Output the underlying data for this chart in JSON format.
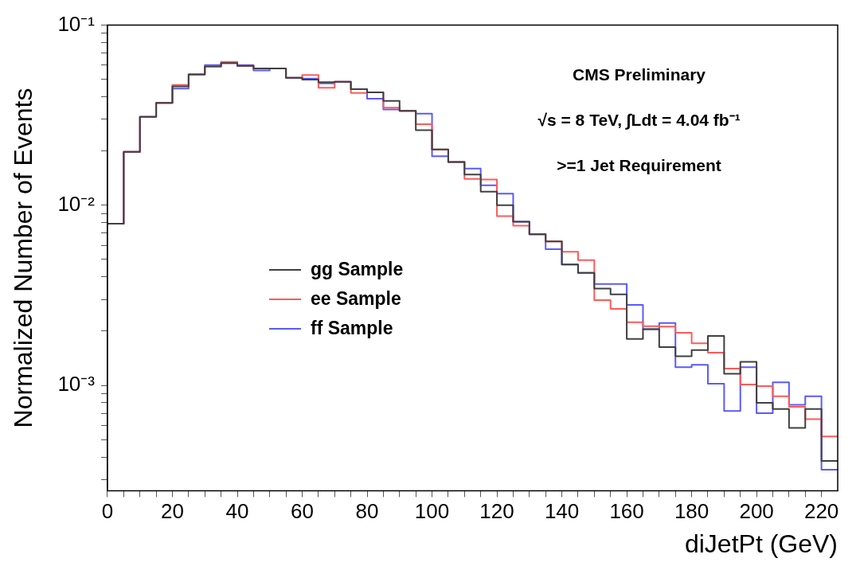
{
  "chart_data": {
    "type": "histogram",
    "xlabel": "diJetPt (GeV)",
    "ylabel": "Normalized Number of Events",
    "bins": [
      0,
      5,
      10,
      15,
      20,
      25,
      30,
      35,
      40,
      45,
      50,
      55,
      60,
      65,
      70,
      75,
      80,
      85,
      90,
      95,
      100,
      105,
      110,
      115,
      120,
      125,
      130,
      135,
      140,
      145,
      150,
      155,
      160,
      165,
      170,
      175,
      180,
      185,
      190,
      195,
      200,
      205,
      210,
      215,
      220,
      225
    ],
    "series": [
      {
        "name": "gg Sample",
        "color": "#404040",
        "values": [
          0.0079,
          0.0198,
          0.031,
          0.037,
          0.0457,
          0.0533,
          0.0589,
          0.0615,
          0.0594,
          0.0575,
          0.0575,
          0.051,
          0.0499,
          0.0482,
          0.0485,
          0.0441,
          0.0424,
          0.038,
          0.0334,
          0.0261,
          0.0204,
          0.0174,
          0.0148,
          0.0119,
          0.01,
          0.0081,
          0.0069,
          0.0063,
          0.00469,
          0.00421,
          0.00345,
          0.0032,
          0.00181,
          0.00205,
          0.00163,
          0.00145,
          0.00157,
          0.00188,
          0.00116,
          0.00135,
          0.0008,
          0.00074,
          0.00058,
          0.00074,
          0.00038
        ]
      },
      {
        "name": "ee Sample",
        "color": "#ff5a5a",
        "values": [
          0.0079,
          0.0198,
          0.031,
          0.037,
          0.0465,
          0.0533,
          0.0589,
          0.0625,
          0.0594,
          0.0575,
          0.0575,
          0.051,
          0.0528,
          0.0449,
          0.0485,
          0.042,
          0.0424,
          0.0348,
          0.0334,
          0.0282,
          0.0204,
          0.0174,
          0.014,
          0.0139,
          0.0087,
          0.0077,
          0.0069,
          0.0063,
          0.00552,
          0.00496,
          0.00297,
          0.00266,
          0.00224,
          0.00213,
          0.00212,
          0.00196,
          0.00171,
          0.00152,
          0.00124,
          0.00101,
          0.00099,
          0.00087,
          0.00076,
          0.00065,
          0.00052
        ]
      },
      {
        "name": "ff Sample",
        "color": "#5a5aff",
        "values": [
          0.0079,
          0.0198,
          0.031,
          0.037,
          0.0445,
          0.0533,
          0.06,
          0.0615,
          0.06,
          0.056,
          0.0575,
          0.051,
          0.0505,
          0.0475,
          0.0485,
          0.0441,
          0.039,
          0.034,
          0.0334,
          0.0323,
          0.0187,
          0.0174,
          0.016,
          0.0129,
          0.0116,
          0.0081,
          0.0069,
          0.0057,
          0.00469,
          0.00421,
          0.00365,
          0.00365,
          0.0028,
          0.00205,
          0.00222,
          0.00126,
          0.0013,
          0.00102,
          0.00072,
          0.00126,
          0.0007,
          0.00104,
          0.00078,
          0.00087,
          0.00034
        ]
      }
    ],
    "xlim": [
      0,
      225
    ],
    "xticks": [
      0,
      {
        "value": 5,
        "label": null
      },
      {
        "value": 10,
        "label": null
      },
      {
        "value": 15,
        "label": null
      },
      20,
      {
        "value": 25,
        "label": null
      },
      {
        "value": 30,
        "label": null
      },
      {
        "value": 35,
        "label": null
      },
      40,
      {
        "value": 45,
        "label": null
      },
      {
        "value": 50,
        "label": null
      },
      {
        "value": 55,
        "label": null
      },
      60,
      {
        "value": 65,
        "label": null
      },
      {
        "value": 70,
        "label": null
      },
      {
        "value": 75,
        "label": null
      },
      80,
      {
        "value": 85,
        "label": null
      },
      {
        "value": 90,
        "label": null
      },
      {
        "value": 95,
        "label": null
      },
      100,
      {
        "value": 105,
        "label": null
      },
      {
        "value": 110,
        "label": null
      },
      {
        "value": 115,
        "label": null
      },
      120,
      {
        "value": 125,
        "label": null
      },
      {
        "value": 130,
        "label": null
      },
      {
        "value": 135,
        "label": null
      },
      140,
      {
        "value": 145,
        "label": null
      },
      {
        "value": 150,
        "label": null
      },
      {
        "value": 155,
        "label": null
      },
      160,
      {
        "value": 165,
        "label": null
      },
      {
        "value": 170,
        "label": null
      },
      {
        "value": 175,
        "label": null
      },
      180,
      {
        "value": 185,
        "label": null
      },
      {
        "value": 190,
        "label": null
      },
      {
        "value": 195,
        "label": null
      },
      200,
      {
        "value": 205,
        "label": null
      },
      {
        "value": 210,
        "label": null
      },
      {
        "value": 215,
        "label": null
      },
      220
    ],
    "ylim": [
      0.00026,
      0.1
    ],
    "yticks": [
      {
        "value": 0.0003,
        "label": null
      },
      {
        "value": 0.0004,
        "label": null
      },
      {
        "value": 0.0005,
        "label": null
      },
      {
        "value": 0.0006,
        "label": null
      },
      {
        "value": 0.0007,
        "label": null
      },
      {
        "value": 0.0008,
        "label": null
      },
      {
        "value": 0.0009,
        "label": null
      },
      {
        "value": 0.001,
        "label": "10⁻³"
      },
      {
        "value": 0.002,
        "label": null
      },
      {
        "value": 0.003,
        "label": null
      },
      {
        "value": 0.004,
        "label": null
      },
      {
        "value": 0.005,
        "label": null
      },
      {
        "value": 0.006,
        "label": null
      },
      {
        "value": 0.007,
        "label": null
      },
      {
        "value": 0.008,
        "label": null
      },
      {
        "value": 0.009,
        "label": null
      },
      {
        "value": 0.01,
        "label": "10⁻²"
      },
      {
        "value": 0.02,
        "label": null
      },
      {
        "value": 0.03,
        "label": null
      },
      {
        "value": 0.04,
        "label": null
      },
      {
        "value": 0.05,
        "label": null
      },
      {
        "value": 0.06,
        "label": null
      },
      {
        "value": 0.07,
        "label": null
      },
      {
        "value": 0.08,
        "label": null
      },
      {
        "value": 0.09,
        "label": null
      },
      {
        "value": 0.1,
        "label": "10⁻¹"
      }
    ],
    "log": "y",
    "grid": false,
    "legend": "left",
    "line_style": "solid",
    "marker": "none",
    "annotations": [
      "CMS Preliminary",
      "√s = 8 TeV, ∫Ldt = 4.04 fb⁻¹",
      ">=1 Jet Requirement"
    ]
  }
}
